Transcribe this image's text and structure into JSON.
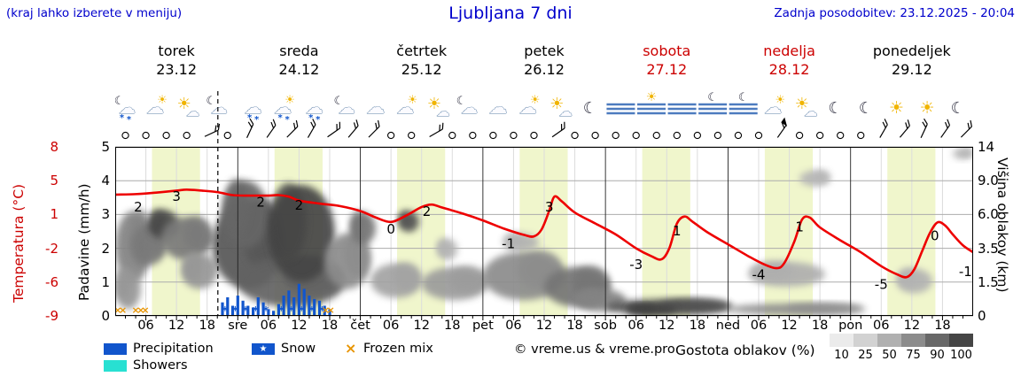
{
  "header": {
    "menu_hint": "(kraj lahko izberete v meniju)",
    "title": "Ljubljana 7 dni",
    "updated": "Zadnja posodobitev: 23.12.2025 - 20:04"
  },
  "days": [
    {
      "name": "torek",
      "date": "23.12",
      "color": "#000000"
    },
    {
      "name": "sreda",
      "date": "24.12",
      "color": "#000000"
    },
    {
      "name": "četrtek",
      "date": "25.12",
      "color": "#000000"
    },
    {
      "name": "petek",
      "date": "26.12",
      "color": "#000000"
    },
    {
      "name": "sobota",
      "date": "27.12",
      "color": "#cc0000"
    },
    {
      "name": "nedelja",
      "date": "28.12",
      "color": "#cc0000"
    },
    {
      "name": "ponedeljek",
      "date": "29.12",
      "color": "#000000"
    }
  ],
  "axes": {
    "temp_label": "Temperatura (°C)",
    "precip_label": "Padavine (mm/h)",
    "cloud_label": "Višina oblakov (km)"
  },
  "legend": {
    "precipitation": "Precipitation",
    "snow": "Snow",
    "frozen_mix": "Frozen mix",
    "showers": "Showers",
    "copyright": "© vreme.us & vreme.pro",
    "cloud_density_label": "Gostota oblakov (%)",
    "cloud_density_ticks": [
      "10",
      "25",
      "50",
      "75",
      "90",
      "100"
    ],
    "snow_star": "★",
    "frozen_glyph": "×"
  },
  "colors": {
    "blue_text": "#0000cc",
    "red": "#cc0000",
    "temp_line": "#ee0000",
    "precip": "#1155cc",
    "showers": "#28e0d2",
    "frozen": "#e89400",
    "daylight": "#f0f6cc",
    "grid": "#ababab",
    "minor_grid": "#dcdcdc",
    "day_line": "#222222",
    "density_scale": [
      "#ebebeb",
      "#d2d2d2",
      "#b0b0b0",
      "#8c8c8c",
      "#686868",
      "#454545"
    ]
  },
  "chart_data": {
    "type": "line",
    "title": "Ljubljana 7 dni",
    "hours": 168,
    "now_hour": 20.1,
    "daylight": {
      "start": 7.2,
      "end": 16.6
    },
    "temp_axis": {
      "label": "Temperatura (°C)",
      "min": -9,
      "max": 8,
      "ticks": [
        "8",
        "5",
        "1",
        "-2",
        "-6",
        "-9"
      ]
    },
    "precip_axis": {
      "label": "Padavine (mm/h)",
      "min": 0,
      "max": 5,
      "ticks": [
        "5",
        "4",
        "3",
        "2",
        "1",
        "0"
      ]
    },
    "cloud_axis": {
      "label": "Višina oblakov (km)",
      "ticks": [
        "14",
        "9.0",
        "6.0",
        "3.5",
        "1.5",
        "0"
      ],
      "km_stops": [
        0,
        1.5,
        3.5,
        6,
        9,
        14
      ]
    },
    "x_ticks": [
      {
        "h": 6,
        "t": "06"
      },
      {
        "h": 12,
        "t": "12"
      },
      {
        "h": 18,
        "t": "18"
      },
      {
        "h": 24,
        "t": "sre"
      },
      {
        "h": 30,
        "t": "06"
      },
      {
        "h": 36,
        "t": "12"
      },
      {
        "h": 42,
        "t": "18"
      },
      {
        "h": 48,
        "t": "čet"
      },
      {
        "h": 54,
        "t": "06"
      },
      {
        "h": 60,
        "t": "12"
      },
      {
        "h": 66,
        "t": "18"
      },
      {
        "h": 72,
        "t": "pet"
      },
      {
        "h": 78,
        "t": "06"
      },
      {
        "h": 84,
        "t": "12"
      },
      {
        "h": 90,
        "t": "18"
      },
      {
        "h": 96,
        "t": "sob"
      },
      {
        "h": 102,
        "t": "06"
      },
      {
        "h": 108,
        "t": "12"
      },
      {
        "h": 114,
        "t": "18"
      },
      {
        "h": 120,
        "t": "ned"
      },
      {
        "h": 126,
        "t": "06"
      },
      {
        "h": 132,
        "t": "12"
      },
      {
        "h": 138,
        "t": "18"
      },
      {
        "h": 144,
        "t": "pon"
      },
      {
        "h": 150,
        "t": "06"
      },
      {
        "h": 156,
        "t": "12"
      },
      {
        "h": 162,
        "t": "18"
      }
    ],
    "temperature": [
      [
        0,
        3.2
      ],
      [
        4,
        3.25
      ],
      [
        8,
        3.4
      ],
      [
        12,
        3.6
      ],
      [
        14,
        3.7
      ],
      [
        17,
        3.6
      ],
      [
        20,
        3.45
      ],
      [
        23,
        3.15
      ],
      [
        26,
        3.1
      ],
      [
        30,
        3.1
      ],
      [
        32,
        3.15
      ],
      [
        34,
        3.0
      ],
      [
        36,
        2.6
      ],
      [
        40,
        2.3
      ],
      [
        44,
        2.05
      ],
      [
        48,
        1.55
      ],
      [
        51,
        0.9
      ],
      [
        54,
        0.45
      ],
      [
        57,
        1.1
      ],
      [
        60,
        1.95
      ],
      [
        62,
        2.2
      ],
      [
        64,
        1.9
      ],
      [
        68,
        1.3
      ],
      [
        72,
        0.6
      ],
      [
        76,
        -0.2
      ],
      [
        80,
        -0.85
      ],
      [
        82,
        -1.0
      ],
      [
        83.5,
        -0.3
      ],
      [
        85,
        1.6
      ],
      [
        86,
        3.0
      ],
      [
        87.5,
        2.5
      ],
      [
        90,
        1.4
      ],
      [
        94,
        0.3
      ],
      [
        98,
        -0.8
      ],
      [
        102,
        -2.2
      ],
      [
        105,
        -3.0
      ],
      [
        107,
        -3.3
      ],
      [
        108.5,
        -2.2
      ],
      [
        110,
        0.3
      ],
      [
        111.5,
        1.0
      ],
      [
        113,
        0.5
      ],
      [
        116,
        -0.6
      ],
      [
        120,
        -1.8
      ],
      [
        124,
        -3.0
      ],
      [
        127,
        -3.8
      ],
      [
        129.5,
        -4.2
      ],
      [
        131,
        -3.7
      ],
      [
        133,
        -1.5
      ],
      [
        134.5,
        0.7
      ],
      [
        136,
        0.9
      ],
      [
        138,
        -0.1
      ],
      [
        142,
        -1.4
      ],
      [
        146,
        -2.6
      ],
      [
        150,
        -4.0
      ],
      [
        153,
        -4.8
      ],
      [
        155,
        -5.1
      ],
      [
        156.5,
        -4.3
      ],
      [
        158,
        -2.5
      ],
      [
        159.5,
        -0.7
      ],
      [
        161,
        0.4
      ],
      [
        162.5,
        0.1
      ],
      [
        164,
        -0.8
      ],
      [
        166,
        -1.9
      ],
      [
        168,
        -2.6
      ]
    ],
    "temp_labels": [
      {
        "h": 4.5,
        "t": 1.5,
        "v": "2"
      },
      {
        "h": 12,
        "t": 2.55,
        "v": "3"
      },
      {
        "h": 28.5,
        "t": 2.0,
        "v": "2"
      },
      {
        "h": 36,
        "t": 1.7,
        "v": "2"
      },
      {
        "h": 54,
        "t": -0.7,
        "v": "0"
      },
      {
        "h": 61,
        "t": 1.05,
        "v": "2"
      },
      {
        "h": 77,
        "t": -2.2,
        "v": "-1"
      },
      {
        "h": 85,
        "t": 1.5,
        "v": "3"
      },
      {
        "h": 102,
        "t": -4.3,
        "v": "-3"
      },
      {
        "h": 110,
        "t": -0.9,
        "v": "1"
      },
      {
        "h": 126,
        "t": -5.3,
        "v": "-4"
      },
      {
        "h": 134,
        "t": -0.5,
        "v": "1"
      },
      {
        "h": 150,
        "t": -6.3,
        "v": "-5"
      },
      {
        "h": 160.5,
        "t": -1.4,
        "v": "0"
      },
      {
        "h": 166.5,
        "t": -5.0,
        "v": "-1"
      }
    ],
    "precip_bars": [
      [
        21,
        0.4
      ],
      [
        22,
        0.55
      ],
      [
        23,
        0.3
      ],
      [
        24,
        0.6
      ],
      [
        25,
        0.45
      ],
      [
        26,
        0.3
      ],
      [
        27,
        0.25
      ],
      [
        28,
        0.55
      ],
      [
        29,
        0.4
      ],
      [
        30,
        0.2
      ],
      [
        31,
        0.15
      ],
      [
        32,
        0.35
      ],
      [
        33,
        0.6
      ],
      [
        34,
        0.75
      ],
      [
        35,
        0.55
      ],
      [
        36,
        0.95
      ],
      [
        37,
        0.8
      ],
      [
        38,
        0.6
      ],
      [
        39,
        0.5
      ],
      [
        40,
        0.45
      ],
      [
        41,
        0.3
      ],
      [
        42,
        0.2
      ]
    ],
    "snow_marker_hours": [
      21.5,
      23.5,
      25.5,
      27.5,
      29.5,
      32.5,
      34.5,
      36.5,
      38.5,
      40.5
    ],
    "frozen_mix_hours": [
      0.5,
      1.5,
      4,
      5,
      5.9,
      41.2,
      42.2
    ],
    "clouds": [
      [
        0,
        7,
        1.5,
        6.3,
        0.55
      ],
      [
        0,
        5,
        0.3,
        2.3,
        0.45
      ],
      [
        3,
        10,
        2.5,
        5.2,
        0.6
      ],
      [
        6.5,
        12.5,
        4.2,
        6.4,
        0.85
      ],
      [
        9,
        19,
        2.8,
        5.8,
        0.6
      ],
      [
        13,
        20,
        1.2,
        3.2,
        0.45
      ],
      [
        19,
        33,
        1.2,
        7.2,
        0.78
      ],
      [
        21,
        30,
        3.5,
        9.0,
        0.7
      ],
      [
        24,
        45,
        0.4,
        3.0,
        0.72
      ],
      [
        30,
        43,
        1.5,
        8.6,
        0.88
      ],
      [
        41,
        50,
        1.2,
        4.6,
        0.5
      ],
      [
        46,
        51,
        3.8,
        6.2,
        0.62
      ],
      [
        50,
        60,
        0.8,
        2.6,
        0.38
      ],
      [
        55.5,
        59.5,
        4.7,
        6.3,
        0.8
      ],
      [
        60,
        73,
        0.7,
        2.4,
        0.42
      ],
      [
        63,
        67,
        2.8,
        4.2,
        0.3
      ],
      [
        72,
        88,
        0.7,
        3.3,
        0.5
      ],
      [
        76,
        83,
        3.3,
        4.6,
        0.3
      ],
      [
        84,
        97,
        0.4,
        2.4,
        0.62
      ],
      [
        90,
        100,
        0.2,
        1.2,
        0.55
      ],
      [
        96,
        121,
        0.05,
        0.75,
        0.82
      ],
      [
        100,
        110,
        0.05,
        0.5,
        0.9
      ],
      [
        120,
        147,
        0.05,
        0.55,
        0.5
      ],
      [
        124,
        139,
        1.3,
        2.7,
        0.32
      ],
      [
        134,
        140,
        8.5,
        10.5,
        0.28
      ],
      [
        153,
        160,
        1.0,
        2.3,
        0.3
      ],
      [
        164,
        168,
        12.2,
        13.8,
        0.3
      ]
    ],
    "icons": [
      {
        "h": 2,
        "type": "moon-cloud-snow"
      },
      {
        "h": 8,
        "type": "cloud-sun"
      },
      {
        "h": 14,
        "type": "sun-cloud"
      },
      {
        "h": 20,
        "type": "moon-cloud"
      },
      {
        "h": 27,
        "type": "cloud-snow"
      },
      {
        "h": 33,
        "type": "cloud-sun-snow"
      },
      {
        "h": 39,
        "type": "cloud-snow"
      },
      {
        "h": 45,
        "type": "moon-cloud"
      },
      {
        "h": 51,
        "type": "cloud"
      },
      {
        "h": 57,
        "type": "cloud-sun"
      },
      {
        "h": 63,
        "type": "sun-cloud"
      },
      {
        "h": 69,
        "type": "moon-cloud"
      },
      {
        "h": 75,
        "type": "cloud"
      },
      {
        "h": 81,
        "type": "cloud-sun"
      },
      {
        "h": 87,
        "type": "sun-cloud"
      },
      {
        "h": 93,
        "type": "moon"
      },
      {
        "h": 99,
        "type": "fog"
      },
      {
        "h": 105,
        "type": "fog-sun"
      },
      {
        "h": 111,
        "type": "fog"
      },
      {
        "h": 117,
        "type": "moon-fog"
      },
      {
        "h": 123,
        "type": "moon-fog"
      },
      {
        "h": 129,
        "type": "cloud-sun"
      },
      {
        "h": 135,
        "type": "sun-cloud"
      },
      {
        "h": 141,
        "type": "moon"
      },
      {
        "h": 147,
        "type": "moon"
      },
      {
        "h": 153,
        "type": "sun"
      },
      {
        "h": 159,
        "type": "sun"
      },
      {
        "h": 165,
        "type": "moon"
      }
    ],
    "wind": [
      [
        2,
        "c"
      ],
      [
        6,
        "c"
      ],
      [
        10,
        "c"
      ],
      [
        14,
        "c"
      ],
      [
        18,
        "b",
        -25
      ],
      [
        22,
        "c"
      ],
      [
        26,
        "b",
        -65
      ],
      [
        30,
        "b",
        -55
      ],
      [
        34,
        "b",
        -45
      ],
      [
        38,
        "b",
        -60
      ],
      [
        42,
        "b",
        -35
      ],
      [
        46,
        "b",
        -50
      ],
      [
        50,
        "b",
        -45
      ],
      [
        54,
        "c"
      ],
      [
        58,
        "c"
      ],
      [
        62,
        "b",
        -30
      ],
      [
        66,
        "c"
      ],
      [
        70,
        "c"
      ],
      [
        74,
        "c"
      ],
      [
        78,
        "c"
      ],
      [
        82,
        "c"
      ],
      [
        86,
        "b",
        -35
      ],
      [
        90,
        "c"
      ],
      [
        94,
        "c"
      ],
      [
        98,
        "c"
      ],
      [
        102,
        "c"
      ],
      [
        106,
        "c"
      ],
      [
        110,
        "c"
      ],
      [
        114,
        "c"
      ],
      [
        118,
        "c"
      ],
      [
        122,
        "c"
      ],
      [
        126,
        "c"
      ],
      [
        130,
        "f",
        -55
      ],
      [
        134,
        "c"
      ],
      [
        138,
        "c"
      ],
      [
        142,
        "c"
      ],
      [
        146,
        "c"
      ],
      [
        150,
        "b",
        -60
      ],
      [
        154,
        "b",
        -50
      ],
      [
        158,
        "b",
        -65
      ],
      [
        162,
        "b",
        -55
      ],
      [
        166,
        "b",
        -45
      ]
    ]
  }
}
